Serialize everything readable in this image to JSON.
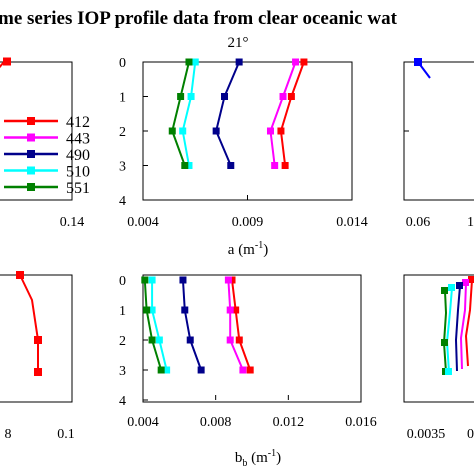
{
  "figure": {
    "title": "me series IOP profile data from clear oceanic wat"
  },
  "chart_data": [
    {
      "type": "line",
      "panel": "top-left",
      "title": "",
      "xlabel": "",
      "ylabel": "",
      "xtick_labels": [
        "0.14"
      ],
      "ytick_labels": [],
      "series": [
        {
          "name": "412",
          "x": [
            0.139
          ],
          "y": [
            0
          ]
        }
      ]
    },
    {
      "type": "line",
      "panel": "top-middle",
      "title": "21°",
      "xlabel": "a (m",
      "xlabel_sup": "-1",
      "xlabel_end": ")",
      "xlim": [
        0.004,
        0.014
      ],
      "ylim": [
        0,
        4
      ],
      "y_inverted": true,
      "xtick_values": [
        0.004,
        0.009,
        0.014
      ],
      "xtick_labels": [
        "0.004",
        "0.009",
        "0.014"
      ],
      "ytick_values": [
        0,
        1,
        2,
        3,
        4
      ],
      "ytick_labels": [
        "0",
        "1",
        "2",
        "3",
        "4"
      ],
      "series": [
        {
          "name": "412",
          "color": "#ff0000",
          "x": [
            0.0117,
            0.0111,
            0.0106,
            0.0108
          ],
          "y": [
            0,
            1,
            2,
            3
          ]
        },
        {
          "name": "443",
          "color": "#ff00ff",
          "x": [
            0.0113,
            0.0107,
            0.0101,
            0.0103
          ],
          "y": [
            0,
            1,
            2,
            3
          ]
        },
        {
          "name": "490",
          "color": "#00008b",
          "x": [
            0.0086,
            0.0079,
            0.0075,
            0.0082
          ],
          "y": [
            0,
            1,
            2,
            3
          ]
        },
        {
          "name": "510",
          "color": "#00ffff",
          "x": [
            0.0065,
            0.0063,
            0.0059,
            0.0062
          ],
          "y": [
            0,
            1,
            2,
            3
          ]
        },
        {
          "name": "551",
          "color": "#008000",
          "x": [
            0.0062,
            0.0058,
            0.0054,
            0.006
          ],
          "y": [
            0,
            1,
            2,
            3
          ]
        }
      ]
    },
    {
      "type": "line",
      "panel": "top-right",
      "title": "",
      "xlabel": "",
      "ylabel": "",
      "xtick_labels": [
        "0.06",
        "1"
      ],
      "ytick_labels": [],
      "series": [
        {
          "name": "412",
          "x": [
            0.06
          ],
          "y": [
            0
          ]
        }
      ]
    },
    {
      "type": "line",
      "panel": "bottom-left",
      "title": "",
      "xlabel": "",
      "ylabel": "",
      "xtick_labels": [
        "8",
        "0.1"
      ],
      "ytick_labels": [],
      "series": [
        {
          "name": "412",
          "x": [
            0.0,
            0.0,
            0.0
          ],
          "y": [
            0,
            2,
            3
          ]
        }
      ]
    },
    {
      "type": "line",
      "panel": "bottom-middle",
      "title": "",
      "xlabel": "b",
      "xlabel_sub": "b",
      "xlabel_mid": " (m",
      "xlabel_sup": "-1",
      "xlabel_end": ")",
      "xlim": [
        0.004,
        0.016
      ],
      "ylim": [
        0,
        4
      ],
      "y_inverted": true,
      "xtick_values": [
        0.004,
        0.008,
        0.012,
        0.016
      ],
      "xtick_labels": [
        "0.004",
        "0.008",
        "0.012",
        "0.016"
      ],
      "ytick_values": [
        0,
        1,
        2,
        3,
        4
      ],
      "ytick_labels": [
        "0",
        "1",
        "2",
        "3",
        "4"
      ],
      "series": [
        {
          "name": "412",
          "color": "#ff0000",
          "x": [
            0.0089,
            0.0091,
            0.0093,
            0.0099
          ],
          "y": [
            0,
            1,
            2,
            3
          ]
        },
        {
          "name": "443",
          "color": "#ff00ff",
          "x": [
            0.0087,
            0.0088,
            0.0088,
            0.0095
          ],
          "y": [
            0,
            1,
            2,
            3
          ]
        },
        {
          "name": "490",
          "color": "#00008b",
          "x": [
            0.0062,
            0.0063,
            0.0066,
            0.0072
          ],
          "y": [
            0,
            1,
            2,
            3
          ]
        },
        {
          "name": "510",
          "color": "#00ffff",
          "x": [
            0.0045,
            0.0045,
            0.0049,
            0.0053
          ],
          "y": [
            0,
            1,
            2,
            3
          ]
        },
        {
          "name": "551",
          "color": "#008000",
          "x": [
            0.0041,
            0.0042,
            0.0045,
            0.005
          ],
          "y": [
            0,
            1,
            2,
            3
          ]
        }
      ]
    },
    {
      "type": "line",
      "panel": "bottom-right",
      "title": "",
      "xlabel": "",
      "ylabel": "",
      "xtick_labels": [
        "0.0035",
        "0"
      ],
      "ytick_labels": [],
      "series": [
        {
          "name": "412",
          "x": [
            0.0
          ],
          "y": [
            0
          ]
        }
      ]
    }
  ],
  "legend": {
    "placement": "left of top-middle panel",
    "entries": [
      {
        "label": "412",
        "color": "#ff0000"
      },
      {
        "label": "443",
        "color": "#ff00ff"
      },
      {
        "label": "490",
        "color": "#00008b"
      },
      {
        "label": "510",
        "color": "#00ffff"
      },
      {
        "label": "551",
        "color": "#008000"
      }
    ]
  },
  "cropped_fragments": {
    "top_right_color": "#0000ff",
    "bottom_right_colors": [
      "#ff0000",
      "#ff00ff",
      "#00008b",
      "#00ffff",
      "#008000"
    ]
  }
}
